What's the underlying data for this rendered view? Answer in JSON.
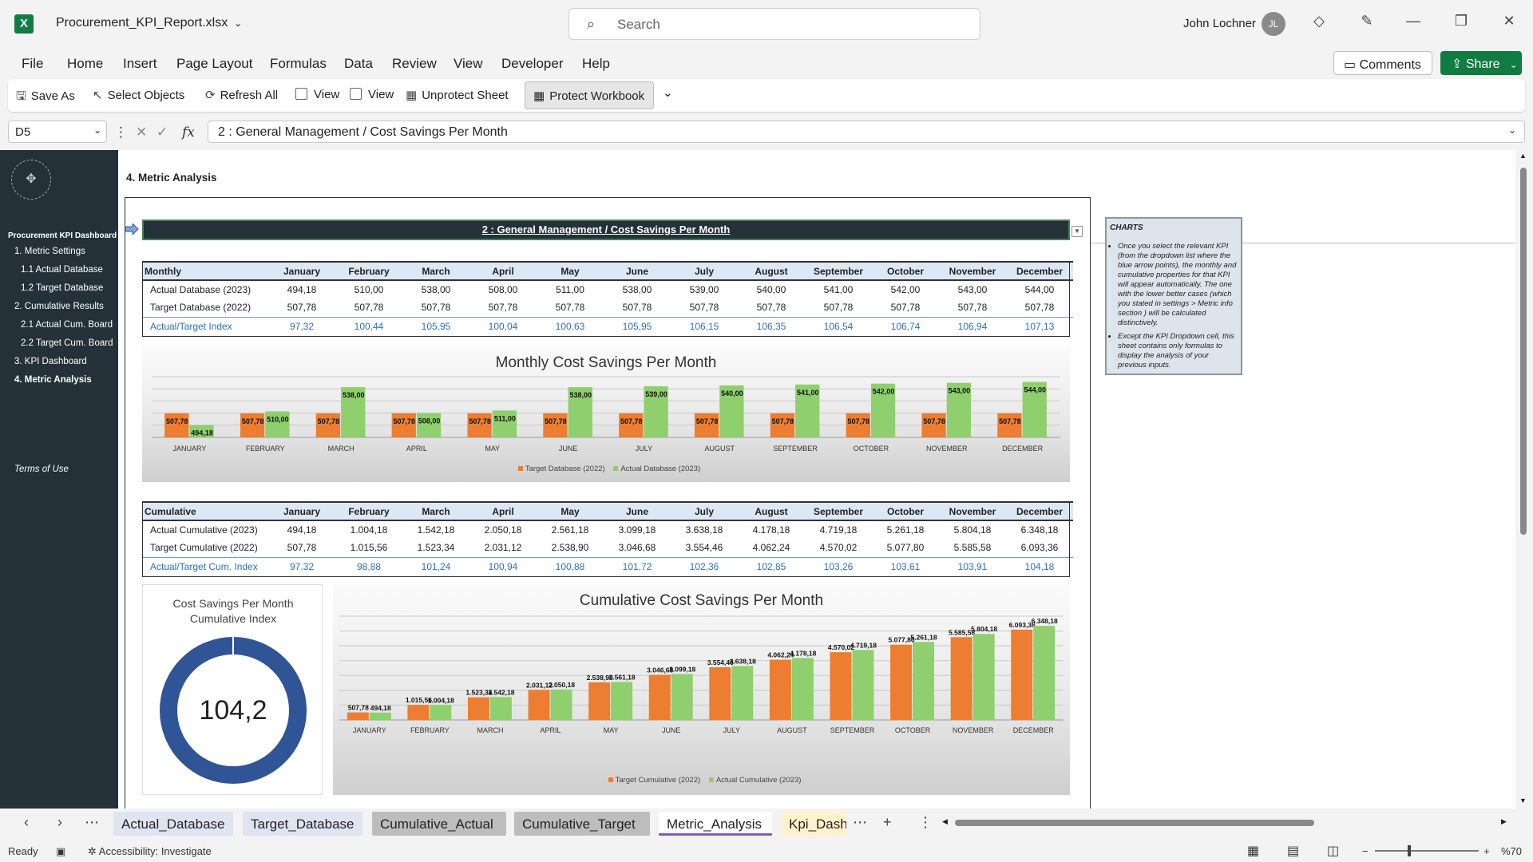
{
  "window": {
    "filename": "Procurement_KPI_Report.xlsx",
    "search_placeholder": "Search",
    "user": "John Lochner",
    "initials": "JL"
  },
  "menu": [
    "File",
    "Home",
    "Insert",
    "Page Layout",
    "Formulas",
    "Data",
    "Review",
    "View",
    "Developer",
    "Help"
  ],
  "comments_label": "Comments",
  "share_label": "Share",
  "ribbon": {
    "save_as": "Save As",
    "select_objects": "Select Objects",
    "refresh_all": "Refresh All",
    "view1": "View",
    "view2": "View",
    "unprotect": "Unprotect Sheet",
    "protect": "Protect Workbook"
  },
  "formula_bar": {
    "name_box": "D5",
    "formula": "2 : General Management / Cost Savings Per Month"
  },
  "sidebar": {
    "title": "Procurement KPI Dashboard",
    "items": [
      "1. Metric Settings",
      "1.1 Actual Database",
      "1.2 Target Database",
      "2. Cumulative Results",
      "2.1 Actual Cum. Board",
      "2.2 Target Cum. Board",
      "3. KPI Dashboard",
      "4. Metric Analysis"
    ],
    "terms": "Terms of Use"
  },
  "heading": "4. Metric Analysis",
  "kpi_title": "2 : General Management / Cost Savings Per Month",
  "months": [
    "January",
    "February",
    "March",
    "April",
    "May",
    "June",
    "July",
    "August",
    "September",
    "October",
    "November",
    "December"
  ],
  "monthly_table": {
    "header": "Monthly",
    "rows": [
      {
        "label": "Actual Database (2023)",
        "values": [
          "494,18",
          "510,00",
          "538,00",
          "508,00",
          "511,00",
          "538,00",
          "539,00",
          "540,00",
          "541,00",
          "542,00",
          "543,00",
          "544,00"
        ]
      },
      {
        "label": "Target Database (2022)",
        "values": [
          "507,78",
          "507,78",
          "507,78",
          "507,78",
          "507,78",
          "507,78",
          "507,78",
          "507,78",
          "507,78",
          "507,78",
          "507,78",
          "507,78"
        ]
      },
      {
        "label": "Actual/Target Index",
        "values": [
          "97,32",
          "100,44",
          "105,95",
          "100,04",
          "100,63",
          "105,95",
          "106,15",
          "106,35",
          "106,54",
          "106,74",
          "106,94",
          "107,13"
        ]
      }
    ]
  },
  "cumulative_table": {
    "header": "Cumulative",
    "rows": [
      {
        "label": "Actual Cumulative (2023)",
        "values": [
          "494,18",
          "1.004,18",
          "1.542,18",
          "2.050,18",
          "2.561,18",
          "3.099,18",
          "3.638,18",
          "4.178,18",
          "4.719,18",
          "5.261,18",
          "5.804,18",
          "6.348,18"
        ]
      },
      {
        "label": "Target Cumulative (2022)",
        "values": [
          "507,78",
          "1.015,56",
          "1.523,34",
          "2.031,12",
          "2.538,90",
          "3.046,68",
          "3.554,46",
          "4.062,24",
          "4.570,02",
          "5.077,80",
          "5.585,58",
          "6.093,36"
        ]
      },
      {
        "label": "Actual/Target Cum. Index",
        "values": [
          "97,32",
          "98,88",
          "101,24",
          "100,94",
          "100,88",
          "101,72",
          "102,36",
          "102,85",
          "103,26",
          "103,61",
          "103,91",
          "104,18"
        ]
      }
    ]
  },
  "chart_data": [
    {
      "type": "bar",
      "title": "Monthly Cost Savings Per Month",
      "categories": [
        "JANUARY",
        "FEBRUARY",
        "MARCH",
        "APRIL",
        "MAY",
        "JUNE",
        "JULY",
        "AUGUST",
        "SEPTEMBER",
        "OCTOBER",
        "NOVEMBER",
        "DECEMBER"
      ],
      "series": [
        {
          "name": "Target Database (2022)",
          "color": "#ed7d31",
          "values": [
            507.78,
            507.78,
            507.78,
            507.78,
            507.78,
            507.78,
            507.78,
            507.78,
            507.78,
            507.78,
            507.78,
            507.78
          ],
          "labels": [
            "507,78",
            "507,78",
            "507,78",
            "507,78",
            "507,78",
            "507,78",
            "507,78",
            "507,78",
            "507,78",
            "507,78",
            "507,78",
            "507,78"
          ]
        },
        {
          "name": "Actual Database (2023)",
          "color": "#8fcf6e",
          "values": [
            494.18,
            510,
            538,
            508,
            511,
            538,
            539,
            540,
            541,
            542,
            543,
            544
          ],
          "labels": [
            "494,18",
            "510,00",
            "538,00",
            "508,00",
            "511,00",
            "538,00",
            "539,00",
            "540,00",
            "541,00",
            "542,00",
            "543,00",
            "544,00"
          ]
        }
      ],
      "ylim": [
        480,
        550
      ],
      "legend": "bottom",
      "grid": true
    },
    {
      "type": "bar",
      "title": "Cumulative Cost Savings Per Month",
      "categories": [
        "JANUARY",
        "FEBRUARY",
        "MARCH",
        "APRIL",
        "MAY",
        "JUNE",
        "JULY",
        "AUGUST",
        "SEPTEMBER",
        "OCTOBER",
        "NOVEMBER",
        "DECEMBER"
      ],
      "series": [
        {
          "name": "Target Cumulative (2022)",
          "color": "#ed7d31",
          "values": [
            507.78,
            1015.56,
            1523.34,
            2031.12,
            2538.9,
            3046.68,
            3554.46,
            4062.24,
            4570.02,
            5077.8,
            5585.58,
            6093.36
          ],
          "labels": [
            "507,78",
            "1.015,56",
            "1.523,34",
            "2.031,12",
            "2.538,90",
            "3.046,68",
            "3.554,46",
            "4.062,24",
            "4.570,02",
            "5.077,80",
            "5.585,58",
            "6.093,36"
          ]
        },
        {
          "name": "Actual Cumulative (2023)",
          "color": "#8fcf6e",
          "values": [
            494.18,
            1004.18,
            1542.18,
            2050.18,
            2561.18,
            3099.18,
            3638.18,
            4178.18,
            4719.18,
            5261.18,
            5804.18,
            6348.18
          ],
          "labels": [
            "494,18",
            "1.004,18",
            "1.542,18",
            "2.050,18",
            "2.561,18",
            "3.099,18",
            "3.638,18",
            "4.178,18",
            "4.719,18",
            "5.261,18",
            "5.804,18",
            "6.348,18"
          ]
        }
      ],
      "ylim": [
        0,
        7000
      ],
      "legend": "bottom",
      "grid": true
    },
    {
      "type": "pie",
      "title": "Cost Savings Per Month Cumulative Index",
      "value": 104.2,
      "label": "104,2",
      "color": "#2f5597"
    }
  ],
  "donut": {
    "title_line1": "Cost Savings Per Month",
    "title_line2": "Cumulative Index",
    "value_label": "104,2"
  },
  "notes": {
    "title": "CHARTS",
    "items": [
      "Once you select the relevant KPI (from the dropdown list where the blue arrow points), the monthly and cumulative properties for that KPI will appear automatically. The one with the lower better cases (which you stated in settings > Metric info section ) will be calculated distinctively.",
      "Except the KPI Dropdown cell, this sheet contains only formulas to display the analysis of your previous inputs."
    ]
  },
  "tabs": [
    "Actual_Database",
    "Target_Database",
    "Cumulative_Actual",
    "Cumulative_Target",
    "Metric_Analysis",
    "Kpi_Dash"
  ],
  "status": {
    "ready": "Ready",
    "accessibility": "Accessibility: Investigate",
    "zoom": "%70"
  }
}
